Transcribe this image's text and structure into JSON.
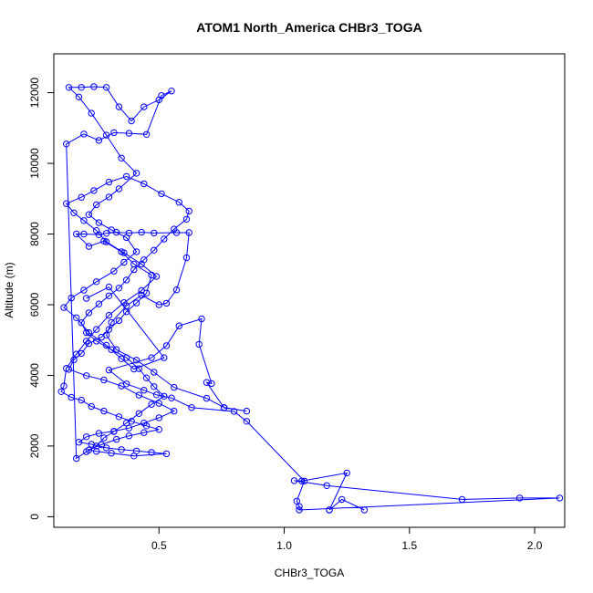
{
  "chart_data": {
    "type": "scatter",
    "title": "ATOM1 North_America CHBr3_TOGA",
    "xlabel": "CHBr3_TOGA",
    "ylabel": "Altitude (m)",
    "xlim": [
      0.08,
      2.12
    ],
    "ylim": [
      -300,
      13100
    ],
    "xticks": [
      0.5,
      1.0,
      1.5,
      2.0
    ],
    "xtick_labels": [
      "0.5",
      "1.0",
      "1.5",
      "2.0"
    ],
    "yticks": [
      0,
      2000,
      4000,
      6000,
      8000,
      10000,
      12000
    ],
    "ytick_labels": [
      "0",
      "2000",
      "4000",
      "6000",
      "8000",
      "10000",
      "12000"
    ],
    "grid": false,
    "legend": "none",
    "color": "#0000ff",
    "marker": "open-circle",
    "series": [
      {
        "x": [
          1.32,
          1.23,
          1.18,
          1.18,
          1.25,
          1.07,
          1.04,
          1.17,
          1.71,
          1.94,
          2.1,
          1.06,
          1.06,
          1.05,
          1.08,
          0.85,
          0.8,
          0.63,
          0.55,
          0.49,
          0.44,
          0.37,
          0.3,
          0.47,
          0.53,
          0.58,
          0.67,
          0.66,
          0.71,
          0.69,
          0.76,
          0.85,
          0.76,
          0.69,
          0.56,
          0.48,
          0.41,
          0.33,
          0.29,
          0.31,
          0.37,
          0.43,
          0.5,
          0.53,
          0.57,
          0.61,
          0.62,
          0.57,
          0.48,
          0.43,
          0.38,
          0.33,
          0.29,
          0.26,
          0.2,
          0.17,
          0.22,
          0.28,
          0.35,
          0.4,
          0.47,
          0.45,
          0.41,
          0.37,
          0.34,
          0.3,
          0.27,
          0.22,
          0.19,
          0.16,
          0.14,
          0.21,
          0.28,
          0.35,
          0.42,
          0.5,
          0.56,
          0.5,
          0.44,
          0.38,
          0.32,
          0.26,
          0.21,
          0.18,
          0.23,
          0.29,
          0.35,
          0.41,
          0.47,
          0.53,
          0.4,
          0.31,
          0.25,
          0.22,
          0.27,
          0.33,
          0.38,
          0.44,
          0.5,
          0.45,
          0.39,
          0.34,
          0.28,
          0.23,
          0.19,
          0.15,
          0.11,
          0.12,
          0.13,
          0.17,
          0.21,
          0.25,
          0.3,
          0.36,
          0.43,
          0.49,
          0.43,
          0.36,
          0.29,
          0.25,
          0.2,
          0.16,
          0.13,
          0.19,
          0.24,
          0.3,
          0.37,
          0.44,
          0.51,
          0.58,
          0.62,
          0.61,
          0.56,
          0.52,
          0.48,
          0.44,
          0.4,
          0.37,
          0.34,
          0.3,
          0.26,
          0.22,
          0.19,
          0.21,
          0.25,
          0.31,
          0.37,
          0.42,
          0.45,
          0.48,
          0.52,
          0.47,
          0.42,
          0.37,
          0.32,
          0.28,
          0.25,
          0.21,
          0.17,
          0.13,
          0.2,
          0.26,
          0.32,
          0.38,
          0.45,
          0.51,
          0.55,
          0.5,
          0.44,
          0.39,
          0.34,
          0.29,
          0.24,
          0.19,
          0.14,
          0.18,
          0.23,
          0.29,
          0.35,
          0.41,
          0.34,
          0.3,
          0.25,
          0.22,
          0.26,
          0.31,
          0.37,
          0.41,
          0.36,
          0.32,
          0.25,
          0.2,
          0.15,
          0.12,
          0.17,
          0.22,
          0.29,
          0.35,
          0.4,
          0.52,
          0.3,
          0.21
        ],
        "y": [
          190,
          490,
          190,
          190,
          1240,
          1010,
          1020,
          880,
          490,
          530,
          530,
          190,
          290,
          440,
          1010,
          2700,
          2980,
          3090,
          3360,
          3450,
          3580,
          3760,
          4150,
          4500,
          4840,
          5400,
          5600,
          4880,
          3770,
          3800,
          3080,
          2990,
          3090,
          3350,
          3660,
          4090,
          4430,
          4730,
          5140,
          5500,
          5970,
          6270,
          6000,
          6040,
          6420,
          7330,
          8040,
          8040,
          8030,
          8050,
          8030,
          8050,
          8020,
          7980,
          8000,
          8000,
          7650,
          7800,
          7500,
          7150,
          6840,
          6330,
          6050,
          5800,
          5550,
          5300,
          5080,
          4900,
          4620,
          4440,
          4170,
          3990,
          3870,
          3700,
          3440,
          3210,
          2990,
          2800,
          2650,
          2510,
          2420,
          2360,
          2260,
          2110,
          2050,
          1950,
          1900,
          1860,
          1820,
          1780,
          1720,
          1800,
          1850,
          1890,
          2040,
          2190,
          2290,
          2380,
          2470,
          2570,
          2700,
          2830,
          2990,
          3120,
          3300,
          3380,
          3540,
          3700,
          4200,
          4600,
          4970,
          5300,
          5700,
          6060,
          6400,
          6800,
          7150,
          7470,
          7780,
          8100,
          8380,
          8600,
          8860,
          9040,
          9230,
          9470,
          9630,
          9420,
          9140,
          8900,
          8650,
          8420,
          8140,
          7860,
          7540,
          7270,
          6990,
          6700,
          6470,
          6250,
          6020,
          5770,
          5490,
          5210,
          4970,
          4730,
          4500,
          4190,
          3930,
          3680,
          3410,
          3180,
          2920,
          2650,
          2410,
          2230,
          2000,
          1840,
          1650,
          10550,
          10830,
          10650,
          10870,
          10850,
          10820,
          11920,
          12050,
          11800,
          11600,
          11200,
          11600,
          12150,
          12170,
          12150,
          12150,
          11880,
          11420,
          10800,
          10150,
          9720,
          9280,
          9050,
          8830,
          8550,
          8320,
          8120,
          7900,
          7500,
          7200,
          6950,
          6650,
          6410,
          6190,
          5920,
          5630,
          5210,
          4850,
          4470,
          4180,
          4500,
          6500,
          6180
        ]
      }
    ]
  }
}
